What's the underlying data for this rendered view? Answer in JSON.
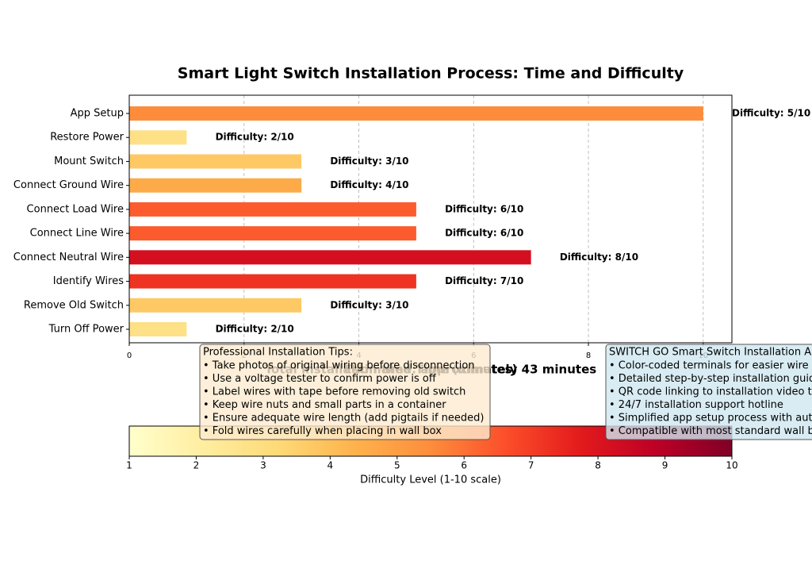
{
  "chart_data": {
    "type": "bar",
    "orientation": "horizontal",
    "title": "Smart Light Switch Installation Process: Time and Difficulty",
    "xlabel": "Estimated Time (minutes)",
    "categories": [
      "Turn Off Power",
      "Remove Old Switch",
      "Identify Wires",
      "Connect Neutral Wire",
      "Connect Line Wire",
      "Connect Load Wire",
      "Connect Ground Wire",
      "Mount Switch",
      "Restore Power",
      "App Setup"
    ],
    "values": [
      1,
      3,
      5,
      7,
      5,
      5,
      3,
      3,
      1,
      10
    ],
    "difficulty": [
      2,
      3,
      7,
      8,
      6,
      6,
      4,
      3,
      2,
      5
    ],
    "difficulty_labels": [
      "Difficulty: 2/10",
      "Difficulty: 3/10",
      "Difficulty: 7/10",
      "Difficulty: 8/10",
      "Difficulty: 6/10",
      "Difficulty: 6/10",
      "Difficulty: 4/10",
      "Difficulty: 3/10",
      "Difficulty: 2/10",
      "Difficulty: 5/10"
    ],
    "colors": [
      "#fee087",
      "#fec965",
      "#ef3323",
      "#d41020",
      "#fc5b2e",
      "#fc5b2e",
      "#fdaa48",
      "#fec965",
      "#fee087",
      "#fd8d3c"
    ],
    "xlim": [
      0,
      10.5
    ],
    "xticks": [
      0,
      2,
      4,
      6,
      8,
      10
    ],
    "grid": true,
    "total_note": "Total installation time: approximately 43 minutes",
    "colorbar": {
      "label": "Difficulty Level (1-10 scale)",
      "lim": [
        1,
        10
      ],
      "ticks": [
        1,
        2,
        3,
        4,
        5,
        6,
        7,
        8,
        9,
        10
      ],
      "colors": [
        "#ffffcc",
        "#ffeda0",
        "#fed976",
        "#feb24c",
        "#fd8d3c",
        "#fc4e2a",
        "#e31a1c",
        "#bd0026",
        "#800026"
      ]
    },
    "tips": {
      "title": "Professional Installation Tips:",
      "items": [
        "• Take photos of original wiring before disconnection",
        "• Use a voltage tester to confirm power is off",
        "• Label wires with tape before removing old switch",
        "• Keep wire nuts and small parts in a container",
        "• Ensure adequate wire length (add pigtails if needed)",
        "• Fold wires carefully when placing in wall box"
      ]
    },
    "features": {
      "title": "SWITCH GO Smart Switch Installation Aids:",
      "items": [
        "• Color-coded terminals for easier wire identification",
        "• Detailed step-by-step installation guide",
        "• QR code linking to installation video tutorial",
        "• 24/7 installation support hotline",
        "• Simplified app setup process with automatic detection",
        "• Compatible with most standard wall boxes"
      ]
    }
  }
}
